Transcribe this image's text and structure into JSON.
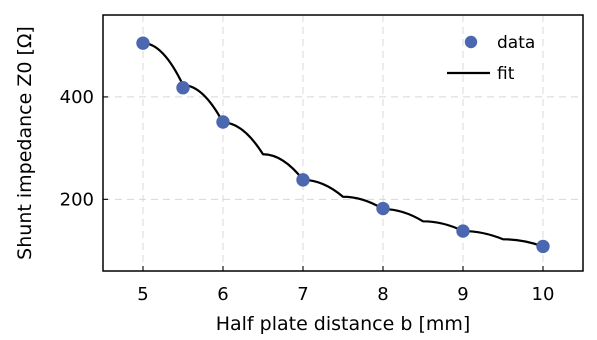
{
  "chart_data": {
    "type": "scatter",
    "title": "",
    "xlabel": "Half plate distance b [mm]",
    "ylabel": "Shunt impedance Z0 [Ω]",
    "xlim": [
      4.5,
      10.5
    ],
    "ylim": [
      60,
      560
    ],
    "xticks": [
      5,
      6,
      7,
      8,
      9,
      10
    ],
    "yticks": [
      200,
      400
    ],
    "grid": true,
    "legend_position": "top-right",
    "series": [
      {
        "name": "data",
        "kind": "scatter",
        "color": "#4a67b0",
        "x": [
          5,
          5.5,
          6,
          7,
          8,
          9,
          10
        ],
        "y": [
          505,
          418,
          351,
          238,
          182,
          138,
          108
        ]
      },
      {
        "name": "fit",
        "kind": "line",
        "color": "#000000",
        "x": [
          5,
          5.5,
          6,
          6.5,
          7,
          7.5,
          8,
          8.5,
          9,
          9.5,
          10
        ],
        "y": [
          505,
          423,
          350,
          288,
          238,
          205,
          181,
          157,
          138,
          122,
          108
        ]
      }
    ]
  }
}
